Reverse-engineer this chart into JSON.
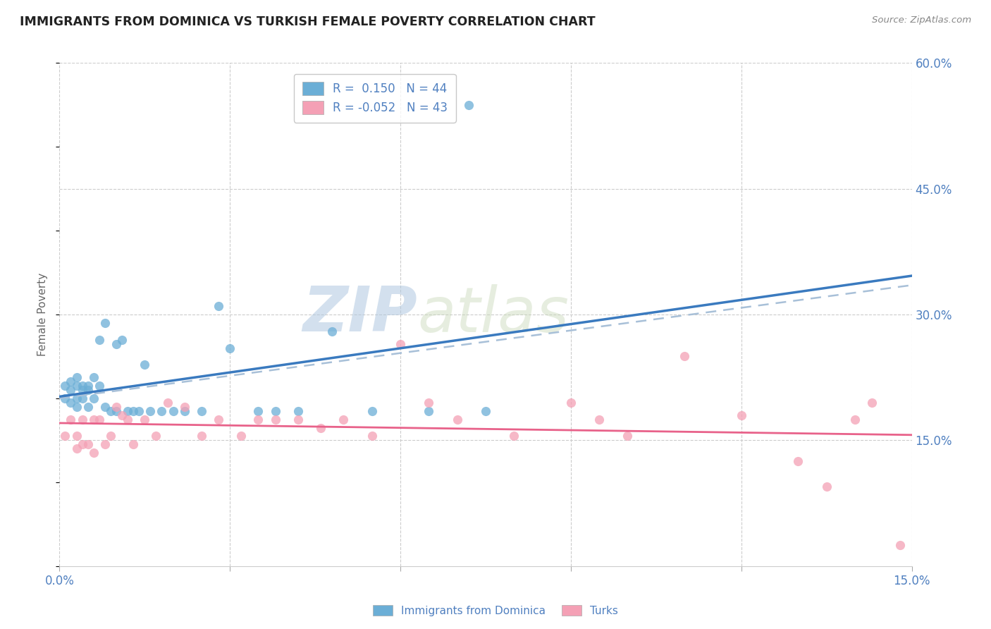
{
  "title": "IMMIGRANTS FROM DOMINICA VS TURKISH FEMALE POVERTY CORRELATION CHART",
  "source": "Source: ZipAtlas.com",
  "ylabel": "Female Poverty",
  "x_min": 0.0,
  "x_max": 0.15,
  "y_min": 0.0,
  "y_max": 0.6,
  "x_ticks": [
    0.0,
    0.03,
    0.06,
    0.09,
    0.12,
    0.15
  ],
  "x_tick_labels_show": [
    "0.0%",
    "",
    "",
    "",
    "",
    "15.0%"
  ],
  "y_ticks": [
    0.0,
    0.15,
    0.3,
    0.45,
    0.6
  ],
  "y_tick_labels_right": [
    "",
    "15.0%",
    "30.0%",
    "45.0%",
    "60.0%"
  ],
  "watermark_zip": "ZIP",
  "watermark_atlas": "atlas",
  "legend_blue_r": "0.150",
  "legend_blue_n": "44",
  "legend_pink_r": "-0.052",
  "legend_pink_n": "43",
  "blue_color": "#6baed6",
  "pink_color": "#f4a0b5",
  "blue_line_color": "#3a7abf",
  "pink_line_color": "#e8628a",
  "dashed_line_color": "#a8c0d8",
  "blue_scatter_x": [
    0.001,
    0.001,
    0.002,
    0.002,
    0.002,
    0.003,
    0.003,
    0.003,
    0.003,
    0.004,
    0.004,
    0.004,
    0.005,
    0.005,
    0.005,
    0.006,
    0.006,
    0.007,
    0.007,
    0.008,
    0.008,
    0.009,
    0.01,
    0.01,
    0.011,
    0.012,
    0.013,
    0.014,
    0.015,
    0.016,
    0.018,
    0.02,
    0.022,
    0.025,
    0.028,
    0.03,
    0.035,
    0.038,
    0.042,
    0.048,
    0.055,
    0.065,
    0.075,
    0.072
  ],
  "blue_scatter_y": [
    0.2,
    0.215,
    0.195,
    0.21,
    0.22,
    0.2,
    0.215,
    0.225,
    0.19,
    0.215,
    0.21,
    0.2,
    0.215,
    0.21,
    0.19,
    0.225,
    0.2,
    0.215,
    0.27,
    0.19,
    0.29,
    0.185,
    0.265,
    0.185,
    0.27,
    0.185,
    0.185,
    0.185,
    0.24,
    0.185,
    0.185,
    0.185,
    0.185,
    0.185,
    0.31,
    0.26,
    0.185,
    0.185,
    0.185,
    0.28,
    0.185,
    0.185,
    0.185,
    0.55
  ],
  "pink_scatter_x": [
    0.001,
    0.002,
    0.003,
    0.003,
    0.004,
    0.004,
    0.005,
    0.006,
    0.006,
    0.007,
    0.008,
    0.009,
    0.01,
    0.011,
    0.012,
    0.013,
    0.015,
    0.017,
    0.019,
    0.022,
    0.025,
    0.028,
    0.032,
    0.035,
    0.038,
    0.042,
    0.046,
    0.05,
    0.055,
    0.06,
    0.065,
    0.07,
    0.08,
    0.09,
    0.095,
    0.1,
    0.11,
    0.12,
    0.13,
    0.135,
    0.14,
    0.143,
    0.148
  ],
  "pink_scatter_y": [
    0.155,
    0.175,
    0.14,
    0.155,
    0.145,
    0.175,
    0.145,
    0.175,
    0.135,
    0.175,
    0.145,
    0.155,
    0.19,
    0.18,
    0.175,
    0.145,
    0.175,
    0.155,
    0.195,
    0.19,
    0.155,
    0.175,
    0.155,
    0.175,
    0.175,
    0.175,
    0.165,
    0.175,
    0.155,
    0.265,
    0.195,
    0.175,
    0.155,
    0.195,
    0.175,
    0.155,
    0.25,
    0.18,
    0.125,
    0.095,
    0.175,
    0.195,
    0.025
  ],
  "background_color": "#ffffff",
  "grid_color": "#cccccc"
}
